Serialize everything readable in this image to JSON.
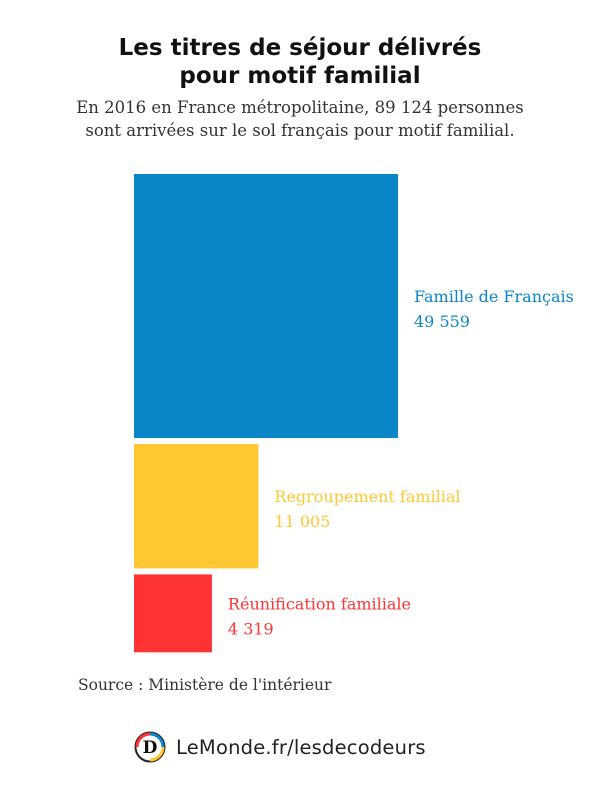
{
  "chart_data": {
    "type": "treemap",
    "title_lines": [
      "Les titres de séjour délivrés",
      "pour motif familial"
    ],
    "subtitle_lines": [
      "En 2016 en France métropolitaine, 89 124 personnes",
      "sont arrivées sur le sol français pour motif familial."
    ],
    "series": [
      {
        "name": "Famille de Français",
        "value": 49559,
        "value_label": "49 559",
        "color": "#0b86c9"
      },
      {
        "name": "Regroupement familial",
        "value": 11005,
        "value_label": "11 005",
        "color": "#ffc832"
      },
      {
        "name": "Réunification familiale",
        "value": 4319,
        "value_label": "4 319",
        "color": "#ff3333"
      }
    ],
    "unit": "personnes"
  },
  "source": "Source : Ministère de l'intérieur",
  "brand": {
    "logo_letter": "D",
    "text": "LeMonde.fr/lesdecodeurs"
  },
  "colors": {
    "title": "#111111",
    "text": "#333333",
    "logo_ring": [
      "#0b86c9",
      "#ffc832",
      "#ff3333"
    ]
  }
}
